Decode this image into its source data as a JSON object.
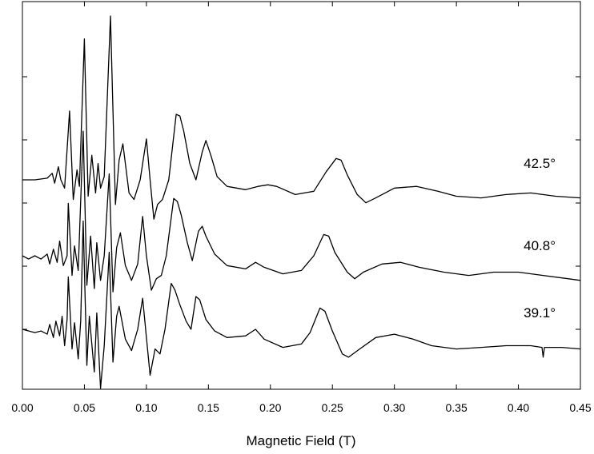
{
  "chart_data": {
    "type": "line",
    "title": "",
    "xlabel": "Magnetic Field (T)",
    "ylabel": "",
    "xlim": [
      0.0,
      0.45
    ],
    "xticks": [
      "0.00",
      "0.05",
      "0.10",
      "0.15",
      "0.20",
      "0.25",
      "0.30",
      "0.35",
      "0.40",
      "0.45"
    ],
    "grid": false,
    "series": [
      {
        "name": "42.5°",
        "points": [
          [
            0.0,
            0.0
          ],
          [
            0.01,
            0.0
          ],
          [
            0.02,
            0.01
          ],
          [
            0.024,
            0.04
          ],
          [
            0.026,
            -0.02
          ],
          [
            0.029,
            0.08
          ],
          [
            0.031,
            0.0
          ],
          [
            0.034,
            -0.05
          ],
          [
            0.038,
            0.42
          ],
          [
            0.041,
            -0.12
          ],
          [
            0.044,
            0.06
          ],
          [
            0.046,
            -0.04
          ],
          [
            0.05,
            0.86
          ],
          [
            0.053,
            -0.1
          ],
          [
            0.056,
            0.15
          ],
          [
            0.059,
            -0.08
          ],
          [
            0.061,
            0.1
          ],
          [
            0.063,
            -0.05
          ],
          [
            0.066,
            0.02
          ],
          [
            0.071,
            1.0
          ],
          [
            0.075,
            -0.15
          ],
          [
            0.078,
            0.12
          ],
          [
            0.081,
            0.22
          ],
          [
            0.086,
            -0.08
          ],
          [
            0.09,
            -0.12
          ],
          [
            0.095,
            0.0
          ],
          [
            0.1,
            0.25
          ],
          [
            0.103,
            0.0
          ],
          [
            0.106,
            -0.24
          ],
          [
            0.109,
            -0.15
          ],
          [
            0.113,
            -0.12
          ],
          [
            0.118,
            0.0
          ],
          [
            0.124,
            0.4
          ],
          [
            0.127,
            0.39
          ],
          [
            0.13,
            0.3
          ],
          [
            0.135,
            0.1
          ],
          [
            0.14,
            0.0
          ],
          [
            0.145,
            0.17
          ],
          [
            0.148,
            0.24
          ],
          [
            0.152,
            0.15
          ],
          [
            0.157,
            0.02
          ],
          [
            0.165,
            -0.04
          ],
          [
            0.18,
            -0.06
          ],
          [
            0.19,
            -0.04
          ],
          [
            0.198,
            -0.03
          ],
          [
            0.205,
            -0.04
          ],
          [
            0.22,
            -0.09
          ],
          [
            0.235,
            -0.07
          ],
          [
            0.245,
            0.05
          ],
          [
            0.253,
            0.13
          ],
          [
            0.257,
            0.12
          ],
          [
            0.262,
            0.03
          ],
          [
            0.27,
            -0.09
          ],
          [
            0.277,
            -0.14
          ],
          [
            0.285,
            -0.11
          ],
          [
            0.3,
            -0.05
          ],
          [
            0.318,
            -0.04
          ],
          [
            0.335,
            -0.07
          ],
          [
            0.35,
            -0.1
          ],
          [
            0.37,
            -0.11
          ],
          [
            0.39,
            -0.09
          ],
          [
            0.41,
            -0.08
          ],
          [
            0.43,
            -0.1
          ],
          [
            0.45,
            -0.11
          ]
        ]
      },
      {
        "name": "40.8°",
        "points": [
          [
            0.0,
            0.0
          ],
          [
            0.005,
            -0.02
          ],
          [
            0.01,
            0.0
          ],
          [
            0.015,
            -0.02
          ],
          [
            0.02,
            0.01
          ],
          [
            0.022,
            -0.05
          ],
          [
            0.025,
            0.04
          ],
          [
            0.028,
            -0.04
          ],
          [
            0.03,
            0.09
          ],
          [
            0.033,
            -0.06
          ],
          [
            0.036,
            0.0
          ],
          [
            0.037,
            0.32
          ],
          [
            0.04,
            -0.12
          ],
          [
            0.042,
            0.06
          ],
          [
            0.045,
            -0.09
          ],
          [
            0.049,
            0.76
          ],
          [
            0.052,
            -0.18
          ],
          [
            0.055,
            0.12
          ],
          [
            0.058,
            -0.2
          ],
          [
            0.06,
            0.08
          ],
          [
            0.063,
            -0.15
          ],
          [
            0.066,
            0.0
          ],
          [
            0.07,
            0.5
          ],
          [
            0.073,
            -0.22
          ],
          [
            0.076,
            0.05
          ],
          [
            0.079,
            0.14
          ],
          [
            0.083,
            -0.06
          ],
          [
            0.088,
            -0.15
          ],
          [
            0.093,
            -0.05
          ],
          [
            0.097,
            0.24
          ],
          [
            0.1,
            0.0
          ],
          [
            0.104,
            -0.21
          ],
          [
            0.108,
            -0.14
          ],
          [
            0.112,
            -0.12
          ],
          [
            0.116,
            0.0
          ],
          [
            0.122,
            0.35
          ],
          [
            0.125,
            0.33
          ],
          [
            0.128,
            0.25
          ],
          [
            0.133,
            0.08
          ],
          [
            0.137,
            -0.03
          ],
          [
            0.142,
            0.15
          ],
          [
            0.145,
            0.18
          ],
          [
            0.148,
            0.12
          ],
          [
            0.155,
            0.01
          ],
          [
            0.165,
            -0.06
          ],
          [
            0.18,
            -0.08
          ],
          [
            0.188,
            -0.04
          ],
          [
            0.195,
            -0.07
          ],
          [
            0.21,
            -0.11
          ],
          [
            0.225,
            -0.09
          ],
          [
            0.235,
            0.0
          ],
          [
            0.243,
            0.13
          ],
          [
            0.247,
            0.12
          ],
          [
            0.252,
            0.02
          ],
          [
            0.262,
            -0.1
          ],
          [
            0.268,
            -0.14
          ],
          [
            0.275,
            -0.1
          ],
          [
            0.29,
            -0.05
          ],
          [
            0.305,
            -0.04
          ],
          [
            0.32,
            -0.07
          ],
          [
            0.34,
            -0.1
          ],
          [
            0.36,
            -0.12
          ],
          [
            0.38,
            -0.1
          ],
          [
            0.4,
            -0.1
          ],
          [
            0.42,
            -0.12
          ],
          [
            0.44,
            -0.14
          ],
          [
            0.45,
            -0.15
          ]
        ]
      },
      {
        "name": "39.1°",
        "points": [
          [
            0.0,
            0.0
          ],
          [
            0.01,
            -0.02
          ],
          [
            0.015,
            -0.01
          ],
          [
            0.02,
            -0.03
          ],
          [
            0.022,
            0.03
          ],
          [
            0.025,
            -0.05
          ],
          [
            0.027,
            0.05
          ],
          [
            0.03,
            -0.04
          ],
          [
            0.032,
            0.08
          ],
          [
            0.034,
            -0.1
          ],
          [
            0.036,
            0.06
          ],
          [
            0.037,
            0.32
          ],
          [
            0.04,
            -0.12
          ],
          [
            0.042,
            0.04
          ],
          [
            0.045,
            -0.18
          ],
          [
            0.047,
            0.05
          ],
          [
            0.049,
            0.66
          ],
          [
            0.052,
            -0.22
          ],
          [
            0.054,
            0.08
          ],
          [
            0.058,
            -0.26
          ],
          [
            0.06,
            0.1
          ],
          [
            0.063,
            -0.36
          ],
          [
            0.066,
            -0.1
          ],
          [
            0.07,
            0.47
          ],
          [
            0.073,
            -0.2
          ],
          [
            0.076,
            0.08
          ],
          [
            0.078,
            0.14
          ],
          [
            0.083,
            -0.06
          ],
          [
            0.088,
            -0.13
          ],
          [
            0.093,
            0.0
          ],
          [
            0.097,
            0.19
          ],
          [
            0.1,
            -0.05
          ],
          [
            0.103,
            -0.28
          ],
          [
            0.107,
            -0.12
          ],
          [
            0.111,
            -0.15
          ],
          [
            0.115,
            0.0
          ],
          [
            0.12,
            0.28
          ],
          [
            0.123,
            0.24
          ],
          [
            0.127,
            0.15
          ],
          [
            0.132,
            0.05
          ],
          [
            0.136,
            0.0
          ],
          [
            0.14,
            0.2
          ],
          [
            0.143,
            0.18
          ],
          [
            0.148,
            0.06
          ],
          [
            0.155,
            -0.01
          ],
          [
            0.165,
            -0.05
          ],
          [
            0.18,
            -0.04
          ],
          [
            0.188,
            0.0
          ],
          [
            0.195,
            -0.06
          ],
          [
            0.21,
            -0.11
          ],
          [
            0.225,
            -0.09
          ],
          [
            0.232,
            -0.02
          ],
          [
            0.24,
            0.13
          ],
          [
            0.244,
            0.11
          ],
          [
            0.25,
            -0.01
          ],
          [
            0.258,
            -0.15
          ],
          [
            0.263,
            -0.17
          ],
          [
            0.272,
            -0.12
          ],
          [
            0.285,
            -0.05
          ],
          [
            0.3,
            -0.03
          ],
          [
            0.315,
            -0.06
          ],
          [
            0.33,
            -0.1
          ],
          [
            0.35,
            -0.12
          ],
          [
            0.37,
            -0.11
          ],
          [
            0.39,
            -0.1
          ],
          [
            0.41,
            -0.1
          ],
          [
            0.419,
            -0.11
          ],
          [
            0.42,
            -0.17
          ],
          [
            0.421,
            -0.11
          ],
          [
            0.435,
            -0.11
          ],
          [
            0.45,
            -0.12
          ]
        ]
      }
    ]
  }
}
